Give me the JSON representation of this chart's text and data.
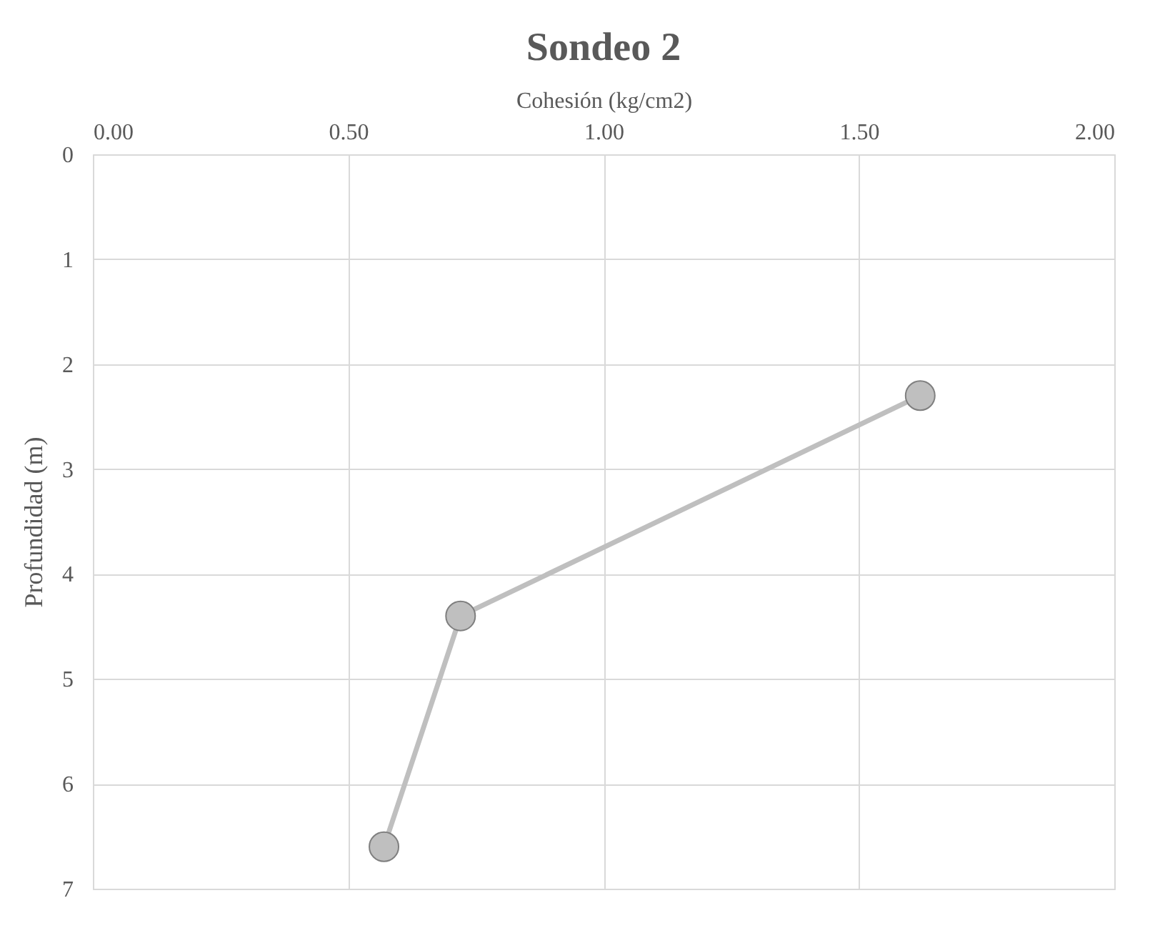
{
  "chart_data": {
    "type": "line",
    "title": "Sondeo 2",
    "xlabel": "Cohesión (kg/cm2)",
    "ylabel": "Profundidad (m)",
    "x": [
      1.62,
      0.72,
      0.57
    ],
    "series": [
      {
        "color": "#bfbfbf",
        "values": [
          2.3,
          4.4,
          6.6
        ]
      }
    ],
    "xlim": [
      0,
      2
    ],
    "xticks": [
      {
        "value": 0,
        "label": "0.00"
      },
      {
        "value": 0.5,
        "label": "0.50"
      },
      {
        "value": 1,
        "label": "1.00"
      },
      {
        "value": 1.5,
        "label": "1.50"
      },
      {
        "value": 2,
        "label": "2.00"
      }
    ],
    "ylim": [
      7,
      0
    ],
    "yticks": [
      0,
      1,
      2,
      3,
      4,
      5,
      6,
      7
    ],
    "grid": true,
    "marker": "circle",
    "line_style": "solid"
  }
}
